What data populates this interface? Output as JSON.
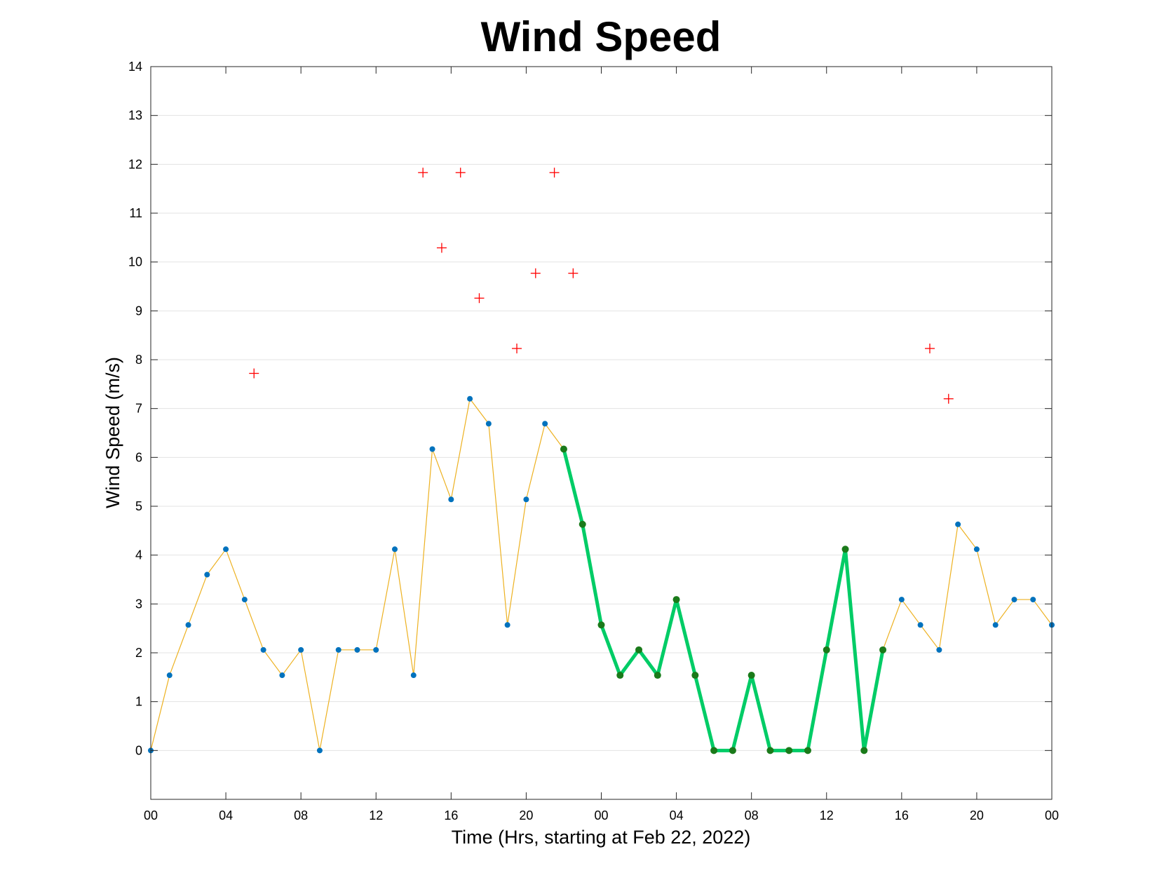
{
  "chart_data": {
    "type": "line",
    "title": "Wind Speed",
    "xlabel": "Time (Hrs, starting at Feb 22, 2022)",
    "ylabel": "Wind Speed (m/s)",
    "xlim": [
      0,
      48
    ],
    "ylim": [
      -1,
      14
    ],
    "x_ticks": [
      0,
      4,
      8,
      12,
      16,
      20,
      24,
      28,
      32,
      36,
      40,
      44,
      48
    ],
    "x_tick_labels": [
      "00",
      "04",
      "08",
      "12",
      "16",
      "20",
      "00",
      "04",
      "08",
      "12",
      "16",
      "20",
      "00"
    ],
    "y_ticks": [
      0,
      1,
      2,
      3,
      4,
      5,
      6,
      7,
      8,
      9,
      10,
      11,
      12,
      13,
      14
    ],
    "y_tick_labels": [
      "0",
      "1",
      "2",
      "3",
      "4",
      "5",
      "6",
      "7",
      "8",
      "9",
      "10",
      "11",
      "12",
      "13",
      "14"
    ],
    "grid": "horizontal",
    "series": [
      {
        "style": "thin line with markers",
        "line_color": "#EDB120",
        "marker_color": "#0072BD",
        "x": [
          0,
          1,
          2,
          3,
          4,
          5,
          6,
          7,
          8,
          9,
          10,
          11,
          12,
          13,
          14,
          15,
          16,
          17,
          18,
          19,
          20,
          21,
          22,
          23,
          24,
          25,
          26,
          27,
          28,
          29,
          30,
          31,
          32,
          33,
          34,
          35,
          36,
          37,
          38,
          39,
          40,
          41,
          42,
          43,
          44,
          45,
          46,
          47,
          48
        ],
        "y": [
          0,
          1.54,
          2.57,
          3.6,
          4.12,
          3.09,
          2.06,
          1.54,
          2.06,
          0,
          2.06,
          2.06,
          2.06,
          4.12,
          1.54,
          6.17,
          5.14,
          7.2,
          6.69,
          2.57,
          5.14,
          6.69,
          6.17,
          4.63,
          2.57,
          1.54,
          2.06,
          1.54,
          3.09,
          1.54,
          0,
          0,
          1.54,
          0,
          0,
          0,
          2.06,
          4.12,
          0,
          2.06,
          3.09,
          2.57,
          2.06,
          4.63,
          4.12,
          2.57,
          3.09,
          3.09,
          2.57
        ]
      },
      {
        "style": "thick highlighted line",
        "line_color": "#00CC66",
        "marker_color": "#1A7A1A",
        "x": [
          22,
          23,
          24,
          25,
          26,
          27,
          28,
          29,
          30,
          31,
          32,
          33,
          34,
          35,
          36,
          37,
          38,
          39
        ],
        "y": [
          6.17,
          4.63,
          2.57,
          1.54,
          2.06,
          1.54,
          3.09,
          1.54,
          0,
          0,
          1.54,
          0,
          0,
          0,
          2.06,
          4.12,
          0,
          2.06
        ]
      },
      {
        "style": "plus markers",
        "marker_color": "#FF0000",
        "x": [
          5.5,
          14.5,
          15.5,
          16.5,
          17.5,
          19.5,
          20.5,
          21.5,
          22.5,
          41.5,
          42.5
        ],
        "y": [
          7.72,
          11.83,
          10.29,
          11.83,
          9.26,
          8.23,
          9.77,
          11.83,
          9.77,
          8.23,
          7.2
        ]
      }
    ]
  }
}
